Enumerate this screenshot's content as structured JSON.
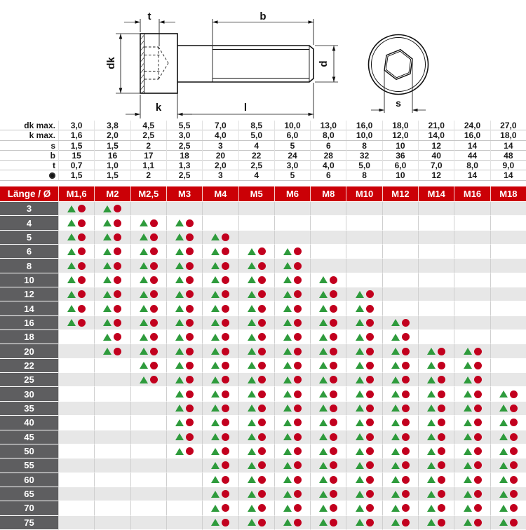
{
  "drawing": {
    "labels": {
      "t": "t",
      "b": "b",
      "dk": "dk",
      "d": "d",
      "k": "k",
      "l": "l",
      "s": "s"
    },
    "views": [
      "side-section-of-socket-head-screw",
      "end-view-with-hex-socket"
    ]
  },
  "spec_table": {
    "rows": [
      {
        "key": "dk_max",
        "label": "dk max.",
        "values": [
          "3,0",
          "3,8",
          "4,5",
          "5,5",
          "7,0",
          "8,5",
          "10,0",
          "13,0",
          "16,0",
          "18,0",
          "21,0",
          "24,0",
          "27,0"
        ]
      },
      {
        "key": "k_max",
        "label": "k max.",
        "values": [
          "1,6",
          "2,0",
          "2,5",
          "3,0",
          "4,0",
          "5,0",
          "6,0",
          "8,0",
          "10,0",
          "12,0",
          "14,0",
          "16,0",
          "18,0"
        ]
      },
      {
        "key": "s",
        "label": "s",
        "values": [
          "1,5",
          "1,5",
          "2",
          "2,5",
          "3",
          "4",
          "5",
          "6",
          "8",
          "10",
          "12",
          "14",
          "14"
        ]
      },
      {
        "key": "b",
        "label": "b",
        "values": [
          "15",
          "16",
          "17",
          "18",
          "20",
          "22",
          "24",
          "28",
          "32",
          "36",
          "40",
          "44",
          "48"
        ]
      },
      {
        "key": "t",
        "label": "t",
        "values": [
          "0,7",
          "1,0",
          "1,1",
          "1,3",
          "2,0",
          "2,5",
          "3,0",
          "4,0",
          "5,0",
          "6,0",
          "7,0",
          "8,0",
          "9,0"
        ]
      },
      {
        "key": "hex_key",
        "label": "●",
        "icon": "hex-key-dot",
        "values": [
          "1,5",
          "1,5",
          "2",
          "2,5",
          "3",
          "4",
          "5",
          "6",
          "8",
          "10",
          "12",
          "14",
          "14"
        ]
      }
    ]
  },
  "matrix": {
    "corner_label": "Länge / Ø",
    "columns": [
      "M1,6",
      "M2",
      "M2,5",
      "M3",
      "M4",
      "M5",
      "M6",
      "M8",
      "M10",
      "M12",
      "M14",
      "M16",
      "M18"
    ],
    "marker_symbols": [
      "triangle",
      "circle"
    ],
    "rows": [
      {
        "length": "3",
        "available": [
          1,
          1,
          0,
          0,
          0,
          0,
          0,
          0,
          0,
          0,
          0,
          0,
          0
        ]
      },
      {
        "length": "4",
        "available": [
          1,
          1,
          1,
          1,
          0,
          0,
          0,
          0,
          0,
          0,
          0,
          0,
          0
        ]
      },
      {
        "length": "5",
        "available": [
          1,
          1,
          1,
          1,
          1,
          0,
          0,
          0,
          0,
          0,
          0,
          0,
          0
        ]
      },
      {
        "length": "6",
        "available": [
          1,
          1,
          1,
          1,
          1,
          1,
          1,
          0,
          0,
          0,
          0,
          0,
          0
        ]
      },
      {
        "length": "8",
        "available": [
          1,
          1,
          1,
          1,
          1,
          1,
          1,
          0,
          0,
          0,
          0,
          0,
          0
        ]
      },
      {
        "length": "10",
        "available": [
          1,
          1,
          1,
          1,
          1,
          1,
          1,
          1,
          0,
          0,
          0,
          0,
          0
        ]
      },
      {
        "length": "12",
        "available": [
          1,
          1,
          1,
          1,
          1,
          1,
          1,
          1,
          1,
          0,
          0,
          0,
          0
        ]
      },
      {
        "length": "14",
        "available": [
          1,
          1,
          1,
          1,
          1,
          1,
          1,
          1,
          1,
          0,
          0,
          0,
          0
        ]
      },
      {
        "length": "16",
        "available": [
          1,
          1,
          1,
          1,
          1,
          1,
          1,
          1,
          1,
          1,
          0,
          0,
          0
        ]
      },
      {
        "length": "18",
        "available": [
          0,
          1,
          1,
          1,
          1,
          1,
          1,
          1,
          1,
          1,
          0,
          0,
          0
        ]
      },
      {
        "length": "20",
        "available": [
          0,
          1,
          1,
          1,
          1,
          1,
          1,
          1,
          1,
          1,
          1,
          1,
          0
        ]
      },
      {
        "length": "22",
        "available": [
          0,
          0,
          1,
          1,
          1,
          1,
          1,
          1,
          1,
          1,
          1,
          1,
          0
        ]
      },
      {
        "length": "25",
        "available": [
          0,
          0,
          1,
          1,
          1,
          1,
          1,
          1,
          1,
          1,
          1,
          1,
          0
        ]
      },
      {
        "length": "30",
        "available": [
          0,
          0,
          0,
          1,
          1,
          1,
          1,
          1,
          1,
          1,
          1,
          1,
          1
        ]
      },
      {
        "length": "35",
        "available": [
          0,
          0,
          0,
          1,
          1,
          1,
          1,
          1,
          1,
          1,
          1,
          1,
          1
        ]
      },
      {
        "length": "40",
        "available": [
          0,
          0,
          0,
          1,
          1,
          1,
          1,
          1,
          1,
          1,
          1,
          1,
          1
        ]
      },
      {
        "length": "45",
        "available": [
          0,
          0,
          0,
          1,
          1,
          1,
          1,
          1,
          1,
          1,
          1,
          1,
          1
        ]
      },
      {
        "length": "50",
        "available": [
          0,
          0,
          0,
          1,
          1,
          1,
          1,
          1,
          1,
          1,
          1,
          1,
          1
        ]
      },
      {
        "length": "55",
        "available": [
          0,
          0,
          0,
          0,
          1,
          1,
          1,
          1,
          1,
          1,
          1,
          1,
          1
        ]
      },
      {
        "length": "60",
        "available": [
          0,
          0,
          0,
          0,
          1,
          1,
          1,
          1,
          1,
          1,
          1,
          1,
          1
        ]
      },
      {
        "length": "65",
        "available": [
          0,
          0,
          0,
          0,
          1,
          1,
          1,
          1,
          1,
          1,
          1,
          1,
          1
        ]
      },
      {
        "length": "70",
        "available": [
          0,
          0,
          0,
          0,
          1,
          1,
          1,
          1,
          1,
          1,
          1,
          1,
          1
        ]
      },
      {
        "length": "75",
        "available": [
          0,
          0,
          0,
          0,
          1,
          1,
          1,
          1,
          1,
          1,
          1,
          1,
          1
        ]
      }
    ]
  },
  "colors": {
    "triangle_green": "#2e9b3c",
    "circle_red": "#c2001e",
    "header_red": "#cb0006",
    "length_column_grey": "#5e5e60",
    "alt_row_grey": "#e7e7e7",
    "grid_line": "#cfcfcf"
  }
}
